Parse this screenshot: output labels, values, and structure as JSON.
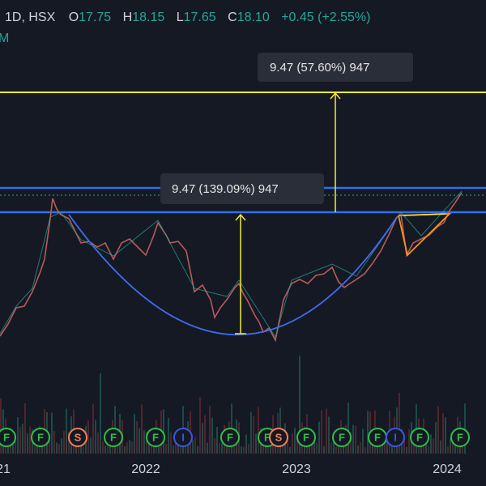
{
  "header": {
    "symbol": "1D, HSX",
    "open_label": "O",
    "open": "17.75",
    "high_label": "H",
    "high": "18.15",
    "low_label": "L",
    "low": "17.65",
    "close_label": "C",
    "close": "18.10",
    "change": "+0.45 (+2.55%)",
    "second_line": "M"
  },
  "annotations": [
    {
      "text": "9.47 (57.60%) 947"
    },
    {
      "text": "9.47 (139.09%) 947"
    }
  ],
  "events": [
    "F",
    "F",
    "S",
    "F",
    "F",
    "I",
    "F",
    "F",
    "S",
    "F",
    "F",
    "F",
    "I",
    "F",
    "F"
  ],
  "x_axis": [
    "21",
    "2022",
    "2023",
    "2024"
  ]
}
